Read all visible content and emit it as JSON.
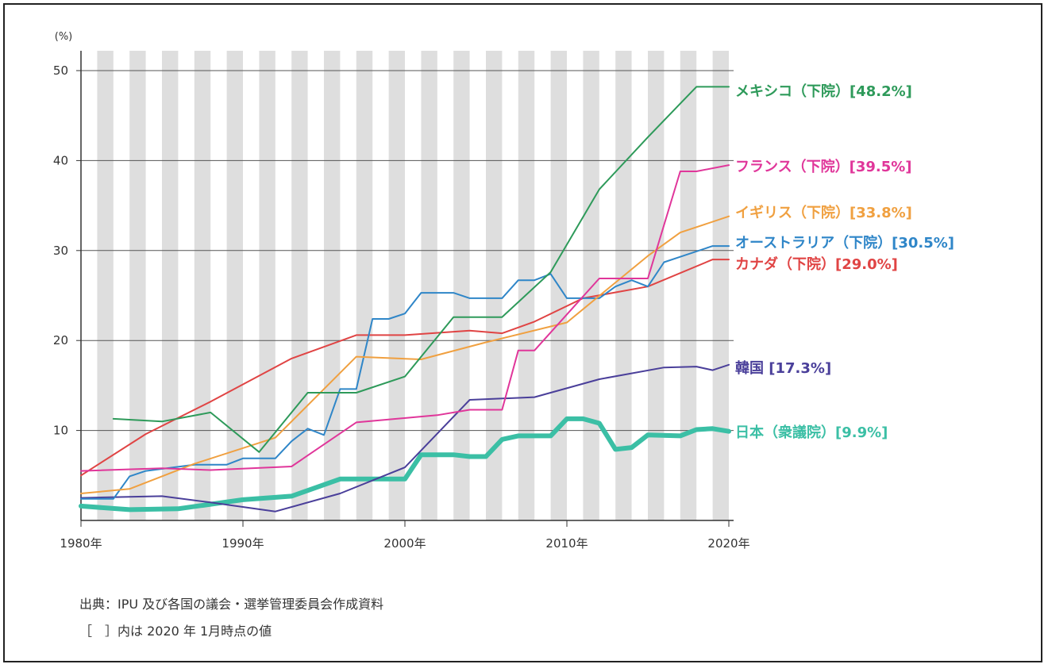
{
  "chart_data": {
    "type": "line",
    "ylabel": "(%)",
    "ylim": [
      0,
      50
    ],
    "xlim": [
      1980,
      2020
    ],
    "yticks": [
      "10",
      "20",
      "30",
      "40",
      "50"
    ],
    "xticks": [
      "1980年",
      "1990年",
      "2000年",
      "2010年",
      "2020年"
    ],
    "grid": "horizontal lines with alternating vertical year bands",
    "series": [
      {
        "name": "メキシコ（下院）[48.2%]",
        "color": "#2e9a5a",
        "width": 2,
        "x": [
          1982,
          1985,
          1988,
          1991,
          1994,
          1997,
          2000,
          2003,
          2006,
          2009,
          2012,
          2015,
          2018,
          2020
        ],
        "y": [
          11.3,
          11.0,
          12.0,
          7.6,
          14.2,
          14.2,
          16.0,
          22.6,
          22.6,
          27.6,
          36.8,
          42.6,
          48.2,
          48.2
        ]
      },
      {
        "name": "フランス（下院）[39.5%]",
        "color": "#e0369a",
        "width": 2,
        "x": [
          1980,
          1985,
          1988,
          1993,
          1997,
          2002,
          2004,
          2006,
          2007,
          2008,
          2012,
          2015,
          2017,
          2018,
          2020
        ],
        "y": [
          5.5,
          5.8,
          5.6,
          6.0,
          10.9,
          11.7,
          12.3,
          12.3,
          18.9,
          18.9,
          26.9,
          26.9,
          38.8,
          38.8,
          39.5
        ]
      },
      {
        "name": "イギリス（下院）[33.8%]",
        "color": "#f0a040",
        "width": 2,
        "x": [
          1980,
          1983,
          1987,
          1992,
          1997,
          2001,
          2005,
          2010,
          2015,
          2017,
          2020
        ],
        "y": [
          3.0,
          3.5,
          6.3,
          9.2,
          18.2,
          17.9,
          19.8,
          22.0,
          29.4,
          32.0,
          33.8
        ]
      },
      {
        "name": "オーストラリア（下院）[30.5%]",
        "color": "#2f86c8",
        "width": 2,
        "x": [
          1980,
          1982,
          1983,
          1984,
          1987,
          1989,
          1990,
          1992,
          1993,
          1994,
          1995,
          1996,
          1997,
          1998,
          1999,
          2000,
          2001,
          2003,
          2004,
          2006,
          2007,
          2008,
          2009,
          2010,
          2012,
          2013,
          2014,
          2015,
          2016,
          2017,
          2019,
          2020
        ],
        "y": [
          2.4,
          2.4,
          4.9,
          5.5,
          6.2,
          6.2,
          6.9,
          6.9,
          8.8,
          10.2,
          9.5,
          14.6,
          14.6,
          22.4,
          22.4,
          23.0,
          25.3,
          25.3,
          24.7,
          24.7,
          26.7,
          26.7,
          27.4,
          24.7,
          24.7,
          26.0,
          26.7,
          26.0,
          28.7,
          29.3,
          30.5,
          30.5
        ]
      },
      {
        "name": "カナダ（下院）[29.0%]",
        "color": "#e04444",
        "width": 2,
        "x": [
          1980,
          1984,
          1988,
          1993,
          1997,
          2000,
          2004,
          2006,
          2008,
          2011,
          2015,
          2019,
          2020
        ],
        "y": [
          5.0,
          9.6,
          13.2,
          18.0,
          20.6,
          20.6,
          21.1,
          20.8,
          22.1,
          24.7,
          26.0,
          29.0,
          29.0
        ]
      },
      {
        "name": "韓国 [17.3%]",
        "color": "#4a3f9a",
        "width": 2,
        "x": [
          1980,
          1985,
          1988,
          1992,
          1996,
          2000,
          2004,
          2008,
          2012,
          2016,
          2018,
          2019,
          2020
        ],
        "y": [
          2.5,
          2.7,
          2.0,
          1.0,
          3.0,
          5.9,
          13.4,
          13.7,
          15.7,
          17.0,
          17.1,
          16.7,
          17.3
        ]
      },
      {
        "name": "日本（衆議院）[9.9%]",
        "color": "#3bbfa5",
        "width": 6,
        "x": [
          1980,
          1983,
          1986,
          1990,
          1993,
          1996,
          1999,
          2000,
          2001,
          2003,
          2004,
          2005,
          2006,
          2007,
          2009,
          2010,
          2011,
          2012,
          2013,
          2014,
          2015,
          2017,
          2018,
          2019,
          2020
        ],
        "y": [
          1.6,
          1.2,
          1.3,
          2.3,
          2.7,
          4.6,
          4.6,
          4.6,
          7.3,
          7.3,
          7.1,
          7.1,
          9.0,
          9.4,
          9.4,
          11.3,
          11.3,
          10.8,
          7.9,
          8.1,
          9.5,
          9.4,
          10.1,
          10.2,
          9.9
        ]
      }
    ]
  },
  "footnote": {
    "source": "出典：IPU 及び各国の議会・選挙管理委員会作成資料",
    "note": "［　］内は 2020 年 1月時点の値"
  }
}
